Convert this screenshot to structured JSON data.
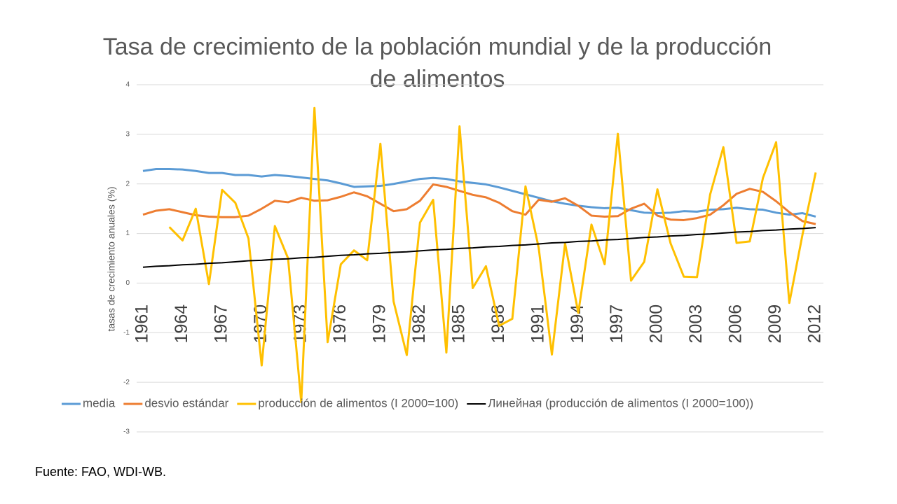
{
  "chart_data": {
    "type": "line",
    "title": "Tasa de crecimiento de la población mundial y de la producción de alimentos",
    "y_label": "tasas de crecimiento anuales (%)",
    "source": "Fuente: FAO, WDI-WB.",
    "x": [
      1961,
      1962,
      1963,
      1964,
      1965,
      1966,
      1967,
      1968,
      1969,
      1970,
      1971,
      1972,
      1973,
      1974,
      1975,
      1976,
      1977,
      1978,
      1979,
      1980,
      1981,
      1982,
      1983,
      1984,
      1985,
      1986,
      1987,
      1988,
      1989,
      1990,
      1991,
      1992,
      1993,
      1994,
      1995,
      1996,
      1997,
      1998,
      1999,
      2000,
      2001,
      2002,
      2003,
      2004,
      2005,
      2006,
      2007,
      2008,
      2009,
      2010,
      2011,
      2012
    ],
    "xlim": [
      1961,
      2012
    ],
    "xticks": [
      1961,
      1964,
      1967,
      1970,
      1973,
      1976,
      1979,
      1982,
      1985,
      1988,
      1991,
      1994,
      1997,
      2000,
      2003,
      2006,
      2009,
      2012
    ],
    "ylim": [
      -3,
      4
    ],
    "yticks": [
      -3,
      -2,
      -1,
      0,
      1,
      2,
      3,
      4
    ],
    "grid": true,
    "legend": "bottom",
    "series": [
      {
        "name": "media",
        "color": "#5b9bd5",
        "values": [
          2.26,
          2.3,
          2.3,
          2.29,
          2.26,
          2.22,
          2.22,
          2.18,
          2.18,
          2.15,
          2.18,
          2.16,
          2.13,
          2.1,
          2.07,
          2.01,
          1.94,
          1.95,
          1.96,
          2.0,
          2.05,
          2.1,
          2.12,
          2.1,
          2.05,
          2.02,
          1.99,
          1.93,
          1.86,
          1.79,
          1.72,
          1.65,
          1.6,
          1.56,
          1.53,
          1.51,
          1.52,
          1.47,
          1.42,
          1.41,
          1.42,
          1.45,
          1.44,
          1.48,
          1.49,
          1.52,
          1.49,
          1.48,
          1.42,
          1.38,
          1.41,
          1.34
        ]
      },
      {
        "name": "desvio estándar",
        "color": "#ed7d31",
        "values": [
          1.38,
          1.46,
          1.49,
          1.43,
          1.37,
          1.34,
          1.33,
          1.33,
          1.36,
          1.5,
          1.66,
          1.63,
          1.72,
          1.66,
          1.67,
          1.74,
          1.83,
          1.75,
          1.6,
          1.45,
          1.49,
          1.66,
          1.99,
          1.94,
          1.86,
          1.78,
          1.73,
          1.62,
          1.45,
          1.38,
          1.68,
          1.64,
          1.71,
          1.56,
          1.36,
          1.34,
          1.35,
          1.5,
          1.6,
          1.36,
          1.28,
          1.27,
          1.31,
          1.38,
          1.57,
          1.8,
          1.9,
          1.84,
          1.65,
          1.43,
          1.25,
          1.19
        ]
      },
      {
        "name": "producción de alimentos (I 2000=100)",
        "color": "#ffc000",
        "values": [
          null,
          null,
          1.13,
          0.86,
          1.5,
          -0.02,
          1.88,
          1.62,
          0.9,
          -1.66,
          1.15,
          0.5,
          -2.4,
          3.53,
          -1.19,
          0.38,
          0.66,
          0.46,
          2.81,
          -0.37,
          -1.45,
          1.22,
          1.68,
          -1.4,
          3.16,
          -0.1,
          0.34,
          -0.86,
          -0.72,
          1.95,
          0.71,
          -1.44,
          0.8,
          -0.6,
          1.18,
          0.38,
          3.01,
          0.05,
          0.43,
          1.89,
          0.8,
          0.13,
          0.12,
          1.79,
          2.74,
          0.81,
          0.84,
          2.12,
          2.84,
          -0.4,
          0.98,
          2.23
        ]
      },
      {
        "name": "Линейная (producción de alimentos (I 2000=100))",
        "color": "#000000",
        "values": [
          0.32,
          0.34,
          0.35,
          0.37,
          0.38,
          0.4,
          0.41,
          0.43,
          0.45,
          0.46,
          0.48,
          0.49,
          0.51,
          0.52,
          0.54,
          0.56,
          0.57,
          0.59,
          0.6,
          0.62,
          0.63,
          0.65,
          0.67,
          0.68,
          0.7,
          0.71,
          0.73,
          0.74,
          0.76,
          0.77,
          0.79,
          0.81,
          0.82,
          0.84,
          0.85,
          0.87,
          0.88,
          0.9,
          0.92,
          0.93,
          0.95,
          0.96,
          0.98,
          0.99,
          1.01,
          1.03,
          1.04,
          1.06,
          1.07,
          1.09,
          1.1,
          1.12
        ]
      }
    ]
  }
}
